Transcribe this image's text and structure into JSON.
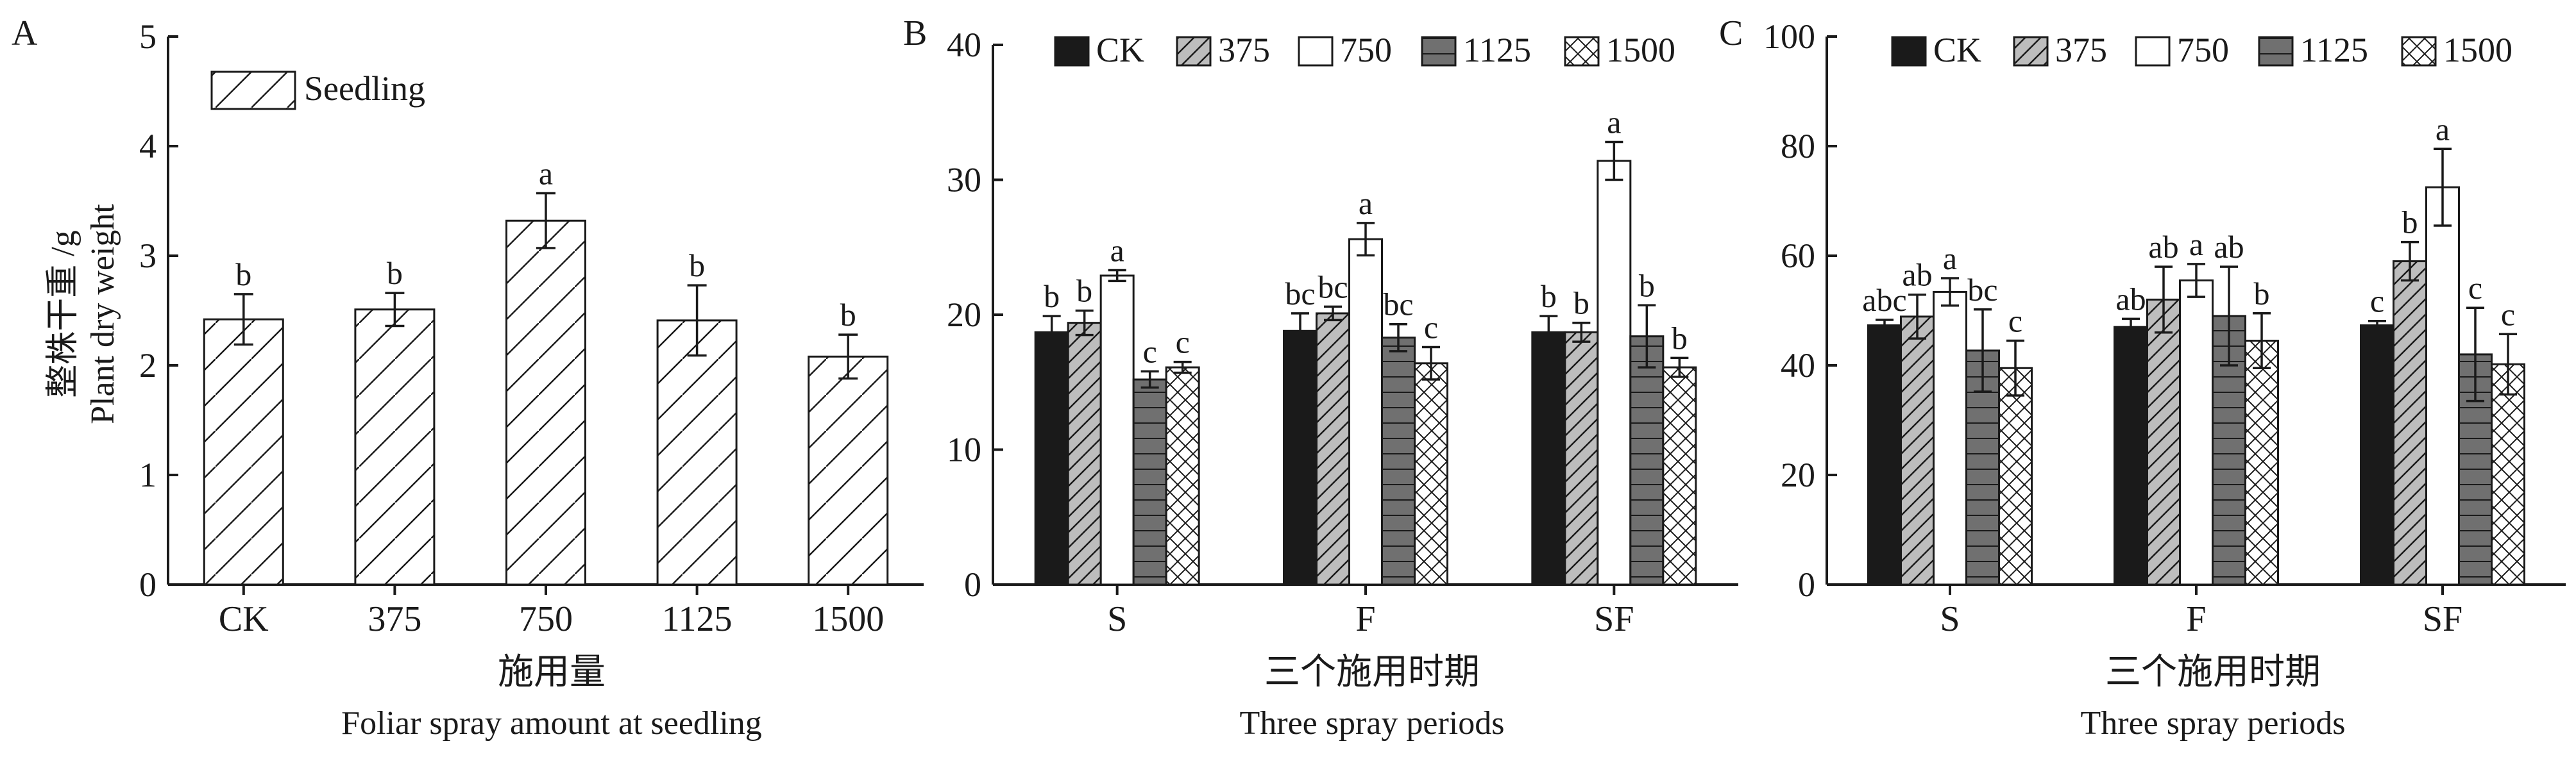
{
  "ylabel_cn": "整株干重 /g",
  "ylabel_en": "Plant dry weight",
  "chart_data": [
    {
      "type": "bar",
      "panel_label": "A",
      "categories": [
        "CK",
        "375",
        "750",
        "1125",
        "1500"
      ],
      "xlabel_cn": "施用量",
      "xlabel_en": "Foliar spray amount at seedling",
      "ylim": [
        0,
        5
      ],
      "yticks": [
        0,
        1,
        2,
        3,
        4,
        5
      ],
      "legend_position": "top-left",
      "series": [
        {
          "name": "Seedling",
          "fill": "hatch",
          "values": [
            2.42,
            2.51,
            3.32,
            2.41,
            2.08
          ],
          "errors": [
            0.23,
            0.15,
            0.25,
            0.32,
            0.2
          ],
          "letters": [
            "b",
            "b",
            "a",
            "b",
            "b"
          ]
        }
      ]
    },
    {
      "type": "bar",
      "panel_label": "B",
      "categories": [
        "S",
        "F",
        "SF"
      ],
      "xlabel_cn": "三个施用时期",
      "xlabel_en": "Three spray periods",
      "ylim": [
        0,
        40
      ],
      "yticks": [
        0,
        10,
        20,
        30,
        40
      ],
      "legend_position": "top",
      "series": [
        {
          "name": "CK",
          "fill": "black",
          "values": [
            18.7,
            18.8,
            18.7
          ],
          "errors": [
            1.2,
            1.3,
            1.2
          ],
          "letters": [
            "b",
            "bc",
            "b"
          ]
        },
        {
          "name": "375",
          "fill": "grey-hatch",
          "values": [
            19.4,
            20.1,
            18.7
          ],
          "errors": [
            0.9,
            0.5,
            0.7
          ],
          "letters": [
            "b",
            "bc",
            "b"
          ]
        },
        {
          "name": "750",
          "fill": "white",
          "values": [
            22.9,
            25.6,
            31.4
          ],
          "errors": [
            0.4,
            1.2,
            1.4
          ],
          "letters": [
            "a",
            "a",
            "a"
          ]
        },
        {
          "name": "1125",
          "fill": "grey-lines",
          "values": [
            15.2,
            18.3,
            18.4
          ],
          "errors": [
            0.6,
            1.0,
            2.3
          ],
          "letters": [
            "c",
            "bc",
            "b"
          ]
        },
        {
          "name": "1500",
          "fill": "crosshatch",
          "values": [
            16.1,
            16.4,
            16.1
          ],
          "errors": [
            0.4,
            1.2,
            0.7
          ],
          "letters": [
            "c",
            "c",
            "b"
          ]
        }
      ]
    },
    {
      "type": "bar",
      "panel_label": "C",
      "categories": [
        "S",
        "F",
        "SF"
      ],
      "xlabel_cn": "三个施用时期",
      "xlabel_en": "Three spray periods",
      "ylim": [
        0,
        100
      ],
      "yticks": [
        0,
        20,
        40,
        60,
        80,
        100
      ],
      "legend_position": "top",
      "series": [
        {
          "name": "CK",
          "fill": "black",
          "values": [
            47.3,
            47.0,
            47.3
          ],
          "errors": [
            1.0,
            1.5,
            0.8
          ],
          "letters": [
            "abc",
            "ab",
            "c"
          ]
        },
        {
          "name": "375",
          "fill": "grey-hatch",
          "values": [
            48.9,
            52.0,
            59.0
          ],
          "errors": [
            4.0,
            6.0,
            3.5
          ],
          "letters": [
            "ab",
            "ab",
            "b"
          ]
        },
        {
          "name": "750",
          "fill": "white",
          "values": [
            53.4,
            55.5,
            72.5
          ],
          "errors": [
            2.5,
            3.0,
            7.0
          ],
          "letters": [
            "a",
            "a",
            "a"
          ]
        },
        {
          "name": "1125",
          "fill": "grey-lines",
          "values": [
            42.7,
            49.0,
            42.0
          ],
          "errors": [
            7.5,
            9.0,
            8.5
          ],
          "letters": [
            "bc",
            "ab",
            "c"
          ]
        },
        {
          "name": "1500",
          "fill": "crosshatch",
          "values": [
            39.5,
            44.5,
            40.2
          ],
          "errors": [
            5.0,
            5.0,
            5.5
          ],
          "letters": [
            "c",
            "b",
            "c"
          ]
        }
      ]
    }
  ]
}
